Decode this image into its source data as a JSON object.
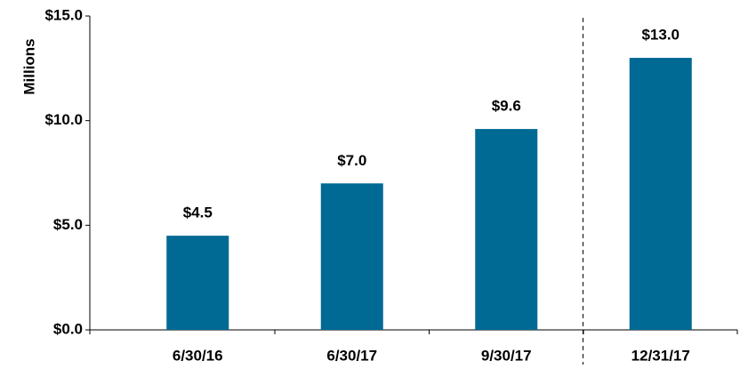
{
  "chart_data": {
    "type": "bar",
    "y_label": "Millions",
    "categories": [
      "6/30/16",
      "6/30/17",
      "9/30/17",
      "12/31/17"
    ],
    "values": [
      4.5,
      7.0,
      9.6,
      13.0
    ],
    "value_labels": [
      "$4.5",
      "$7.0",
      "$9.6",
      "$13.0"
    ],
    "color": "#006994",
    "ylim": [
      0,
      15
    ],
    "yticks": [
      {
        "value": 0,
        "label": "$0.0"
      },
      {
        "value": 5,
        "label": "$5.0"
      },
      {
        "value": 10,
        "label": "$10.0"
      },
      {
        "value": 15,
        "label": "$15.0"
      }
    ],
    "grid": false
  }
}
